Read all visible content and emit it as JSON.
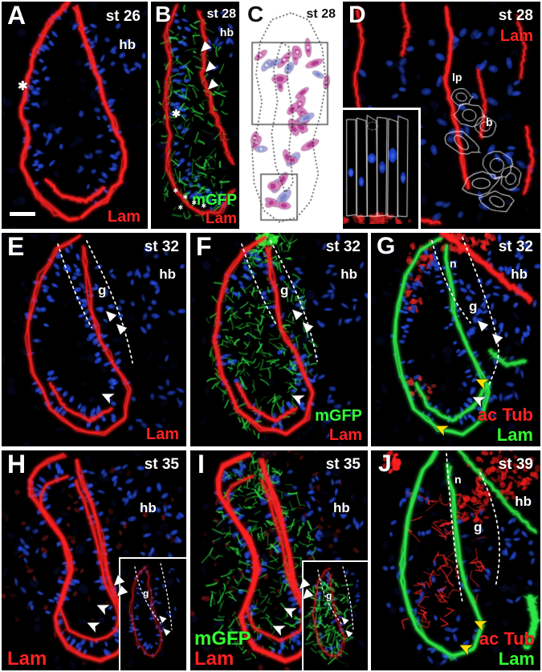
{
  "colors": {
    "laminin_red": "#ff2222",
    "gfp_green": "#33ff33",
    "lam_green": "#33ff33",
    "actub_red": "#ff2222",
    "nuclei_blue": "#2a46d4",
    "annotation_white": "#ffffff",
    "arrow_yellow": "#ffdf00",
    "diagram_pink": "#d886bc",
    "diagram_lavender": "#a9aede",
    "panel_background": "#000000",
    "frame_white": "#ffffff"
  },
  "panels": [
    {
      "letter": "A",
      "stage": "st 26",
      "region_labels": {
        "hb": "hb"
      },
      "channel_labels": [
        {
          "text": "Lam",
          "color": "#ff2222"
        }
      ],
      "marks": {
        "asterisk": "✱"
      }
    },
    {
      "letter": "B",
      "stage": "st 28",
      "region_labels": {
        "hb": "hb"
      },
      "channel_labels": [
        {
          "text": "mGFP",
          "color": "#33ff33"
        },
        {
          "text": "Lam",
          "color": "#ff2222"
        }
      ],
      "marks": {
        "asterisk": "✱",
        "small_asterisk": "∗"
      }
    },
    {
      "letter": "C",
      "stage": "st 28"
    },
    {
      "letter": "D",
      "stage": "st 28",
      "region_labels": {
        "lp": "lp",
        "b": "b"
      },
      "channel_labels": [
        {
          "text": "Lam",
          "color": "#ff2222"
        }
      ]
    },
    {
      "letter": "E",
      "stage": "st 32",
      "region_labels": {
        "hb": "hb",
        "g": "g"
      },
      "channel_labels": [
        {
          "text": "Lam",
          "color": "#ff2222"
        }
      ]
    },
    {
      "letter": "F",
      "stage": "st 32",
      "region_labels": {
        "hb": "hb",
        "g": "g"
      },
      "channel_labels": [
        {
          "text": "mGFP",
          "color": "#33ff33"
        },
        {
          "text": "Lam",
          "color": "#ff2222"
        }
      ]
    },
    {
      "letter": "G",
      "stage": "st 32",
      "region_labels": {
        "hb": "hb",
        "n": "n",
        "g": "g"
      },
      "channel_labels": [
        {
          "text": "ac Tub",
          "color": "#ff2222"
        },
        {
          "text": "Lam",
          "color": "#33ff33"
        }
      ]
    },
    {
      "letter": "H",
      "stage": "st 35",
      "region_labels": {
        "hb": "hb"
      },
      "inset": {
        "g": "g"
      },
      "channel_labels": [
        {
          "text": "Lam",
          "color": "#ff2222"
        }
      ]
    },
    {
      "letter": "I",
      "stage": "st 35",
      "region_labels": {
        "hb": "hb"
      },
      "inset": {
        "g": "g"
      },
      "channel_labels": [
        {
          "text": "mGFP",
          "color": "#33ff33"
        },
        {
          "text": "Lam",
          "color": "#ff2222"
        }
      ]
    },
    {
      "letter": "J",
      "stage": "st 39",
      "region_labels": {
        "hb": "hb",
        "n": "n",
        "g": "g"
      },
      "channel_labels": [
        {
          "text": "ac Tub",
          "color": "#ff2222"
        },
        {
          "text": "Lam",
          "color": "#33ff33"
        }
      ]
    }
  ]
}
